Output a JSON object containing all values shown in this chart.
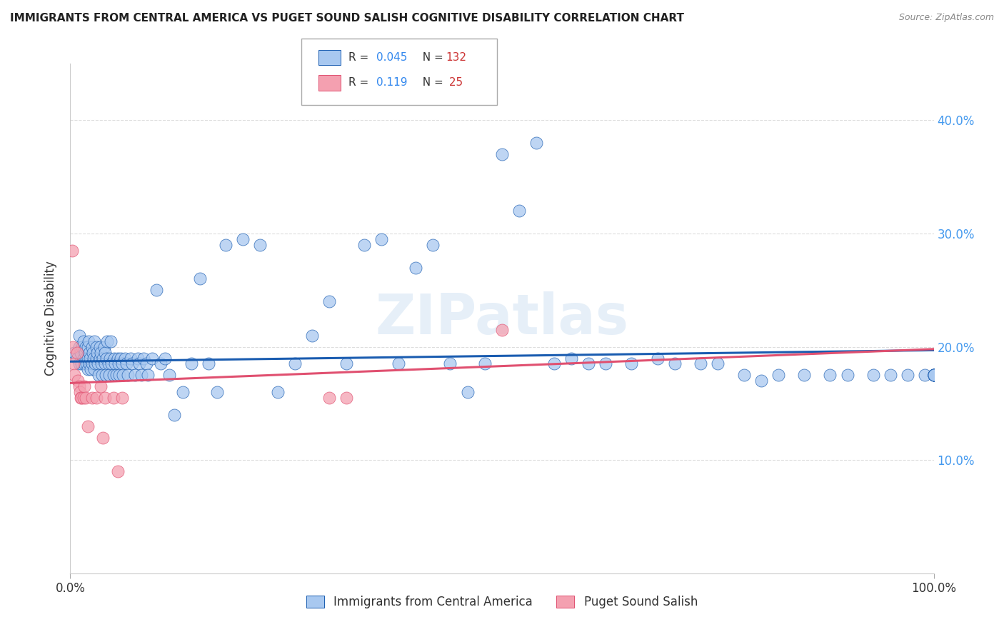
{
  "title": "IMMIGRANTS FROM CENTRAL AMERICA VS PUGET SOUND SALISH COGNITIVE DISABILITY CORRELATION CHART",
  "source": "Source: ZipAtlas.com",
  "ylabel": "Cognitive Disability",
  "xlim": [
    0.0,
    1.0
  ],
  "ylim": [
    0.0,
    0.45
  ],
  "yticks": [
    0.1,
    0.2,
    0.3,
    0.4
  ],
  "ytick_labels": [
    "10.0%",
    "20.0%",
    "30.0%",
    "40.0%"
  ],
  "blue_R": 0.045,
  "blue_N": 132,
  "pink_R": 0.119,
  "pink_N": 25,
  "blue_color": "#a8c8f0",
  "pink_color": "#f4a0b0",
  "blue_line_color": "#1a5cb0",
  "pink_line_color": "#e05070",
  "grid_color": "#dddddd",
  "watermark": "ZIPatlas",
  "blue_points_x": [
    0.005,
    0.008,
    0.01,
    0.01,
    0.01,
    0.012,
    0.013,
    0.014,
    0.015,
    0.015,
    0.016,
    0.017,
    0.018,
    0.018,
    0.019,
    0.02,
    0.02,
    0.02,
    0.021,
    0.022,
    0.022,
    0.023,
    0.024,
    0.025,
    0.025,
    0.026,
    0.027,
    0.028,
    0.028,
    0.029,
    0.03,
    0.03,
    0.031,
    0.032,
    0.033,
    0.034,
    0.034,
    0.035,
    0.036,
    0.037,
    0.038,
    0.039,
    0.04,
    0.04,
    0.041,
    0.042,
    0.043,
    0.044,
    0.045,
    0.046,
    0.047,
    0.048,
    0.05,
    0.051,
    0.052,
    0.053,
    0.055,
    0.056,
    0.057,
    0.058,
    0.06,
    0.061,
    0.063,
    0.065,
    0.067,
    0.07,
    0.072,
    0.075,
    0.078,
    0.08,
    0.082,
    0.085,
    0.088,
    0.09,
    0.095,
    0.1,
    0.105,
    0.11,
    0.115,
    0.12,
    0.13,
    0.14,
    0.15,
    0.16,
    0.17,
    0.18,
    0.2,
    0.22,
    0.24,
    0.26,
    0.28,
    0.3,
    0.32,
    0.34,
    0.36,
    0.38,
    0.4,
    0.42,
    0.44,
    0.46,
    0.48,
    0.5,
    0.52,
    0.54,
    0.56,
    0.58,
    0.6,
    0.62,
    0.65,
    0.68,
    0.7,
    0.73,
    0.75,
    0.78,
    0.8,
    0.82,
    0.85,
    0.88,
    0.9,
    0.93,
    0.95,
    0.97,
    0.99,
    1.0,
    1.0,
    1.0,
    1.0,
    1.0,
    1.0,
    1.0,
    1.0,
    1.0
  ],
  "blue_points_y": [
    0.195,
    0.19,
    0.2,
    0.185,
    0.21,
    0.195,
    0.185,
    0.2,
    0.19,
    0.205,
    0.185,
    0.195,
    0.19,
    0.2,
    0.185,
    0.18,
    0.2,
    0.19,
    0.205,
    0.185,
    0.195,
    0.19,
    0.18,
    0.2,
    0.185,
    0.195,
    0.19,
    0.205,
    0.18,
    0.185,
    0.19,
    0.2,
    0.195,
    0.185,
    0.175,
    0.19,
    0.2,
    0.195,
    0.185,
    0.175,
    0.19,
    0.2,
    0.185,
    0.195,
    0.175,
    0.19,
    0.205,
    0.185,
    0.175,
    0.19,
    0.205,
    0.185,
    0.175,
    0.19,
    0.185,
    0.175,
    0.19,
    0.185,
    0.175,
    0.19,
    0.185,
    0.175,
    0.19,
    0.185,
    0.175,
    0.19,
    0.185,
    0.175,
    0.19,
    0.185,
    0.175,
    0.19,
    0.185,
    0.175,
    0.19,
    0.25,
    0.185,
    0.19,
    0.175,
    0.14,
    0.16,
    0.185,
    0.26,
    0.185,
    0.16,
    0.29,
    0.295,
    0.29,
    0.16,
    0.185,
    0.21,
    0.24,
    0.185,
    0.29,
    0.295,
    0.185,
    0.27,
    0.29,
    0.185,
    0.16,
    0.185,
    0.37,
    0.32,
    0.38,
    0.185,
    0.19,
    0.185,
    0.185,
    0.185,
    0.19,
    0.185,
    0.185,
    0.185,
    0.175,
    0.17,
    0.175,
    0.175,
    0.175,
    0.175,
    0.175,
    0.175,
    0.175,
    0.175,
    0.175,
    0.175,
    0.175,
    0.175,
    0.175,
    0.175,
    0.175,
    0.175,
    0.175
  ],
  "pink_points_x": [
    0.002,
    0.003,
    0.004,
    0.005,
    0.008,
    0.009,
    0.01,
    0.011,
    0.012,
    0.013,
    0.015,
    0.016,
    0.018,
    0.02,
    0.025,
    0.03,
    0.035,
    0.038,
    0.04,
    0.05,
    0.055,
    0.06,
    0.3,
    0.32,
    0.5
  ],
  "pink_points_y": [
    0.285,
    0.2,
    0.185,
    0.175,
    0.195,
    0.17,
    0.165,
    0.16,
    0.155,
    0.155,
    0.155,
    0.165,
    0.155,
    0.13,
    0.155,
    0.155,
    0.165,
    0.12,
    0.155,
    0.155,
    0.09,
    0.155,
    0.155,
    0.155,
    0.215
  ],
  "blue_trend_x": [
    0.0,
    1.0
  ],
  "blue_trend_y_start": 0.187,
  "blue_trend_y_end": 0.197,
  "pink_trend_x": [
    0.0,
    1.0
  ],
  "pink_trend_y_start": 0.168,
  "pink_trend_y_end": 0.198
}
